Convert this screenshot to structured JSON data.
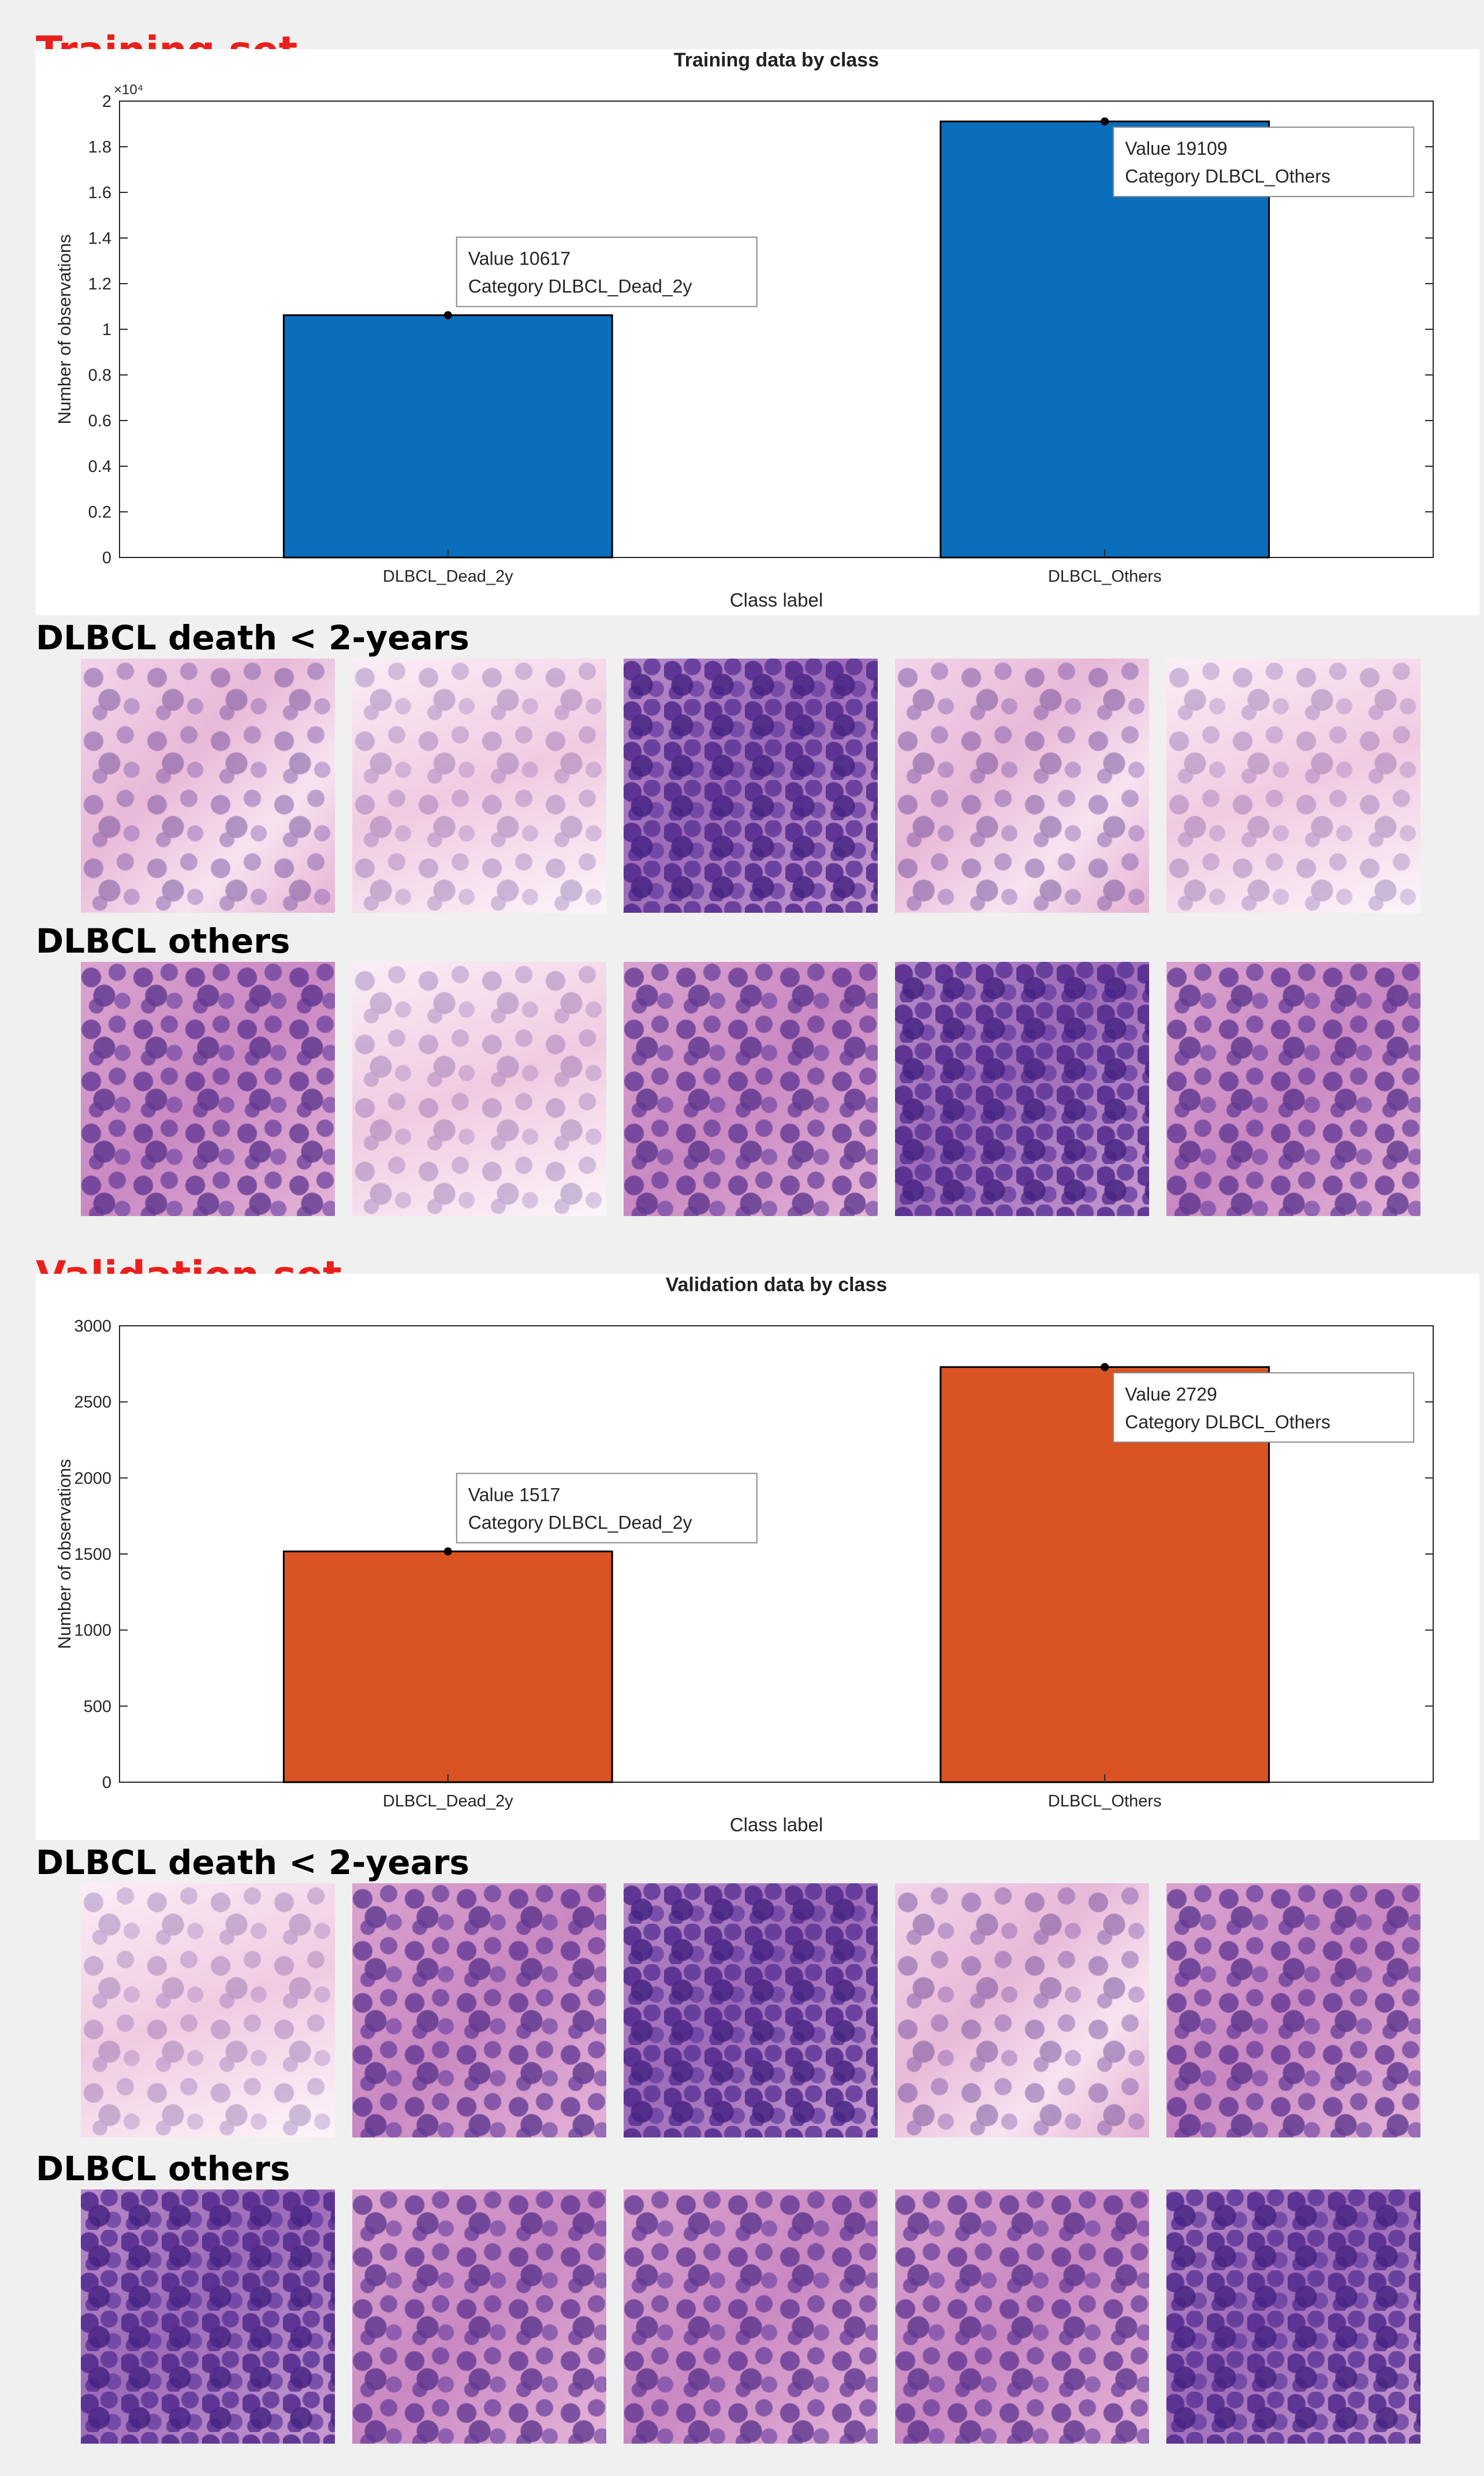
{
  "training": {
    "section_title": "Training set",
    "group1_title": "DLBCL death < 2-years",
    "group2_title": "DLBCL others",
    "group1_tiles": [
      "light",
      "pale",
      "dense",
      "light",
      "pale"
    ],
    "group2_tiles": [
      "mid",
      "pale",
      "mid",
      "dense",
      "mid"
    ]
  },
  "validation": {
    "section_title": "Validation set",
    "group1_title": "DLBCL death < 2-years",
    "group2_title": "DLBCL others",
    "group1_tiles": [
      "pale",
      "mid",
      "dense",
      "light",
      "mid"
    ],
    "group2_tiles": [
      "dense",
      "mid",
      "mid",
      "mid",
      "dense"
    ]
  },
  "chart_data": [
    {
      "type": "bar",
      "title": "Training data by class",
      "xlabel": "Class label",
      "ylabel": "Number of observations",
      "categories": [
        "DLBCL_Dead_2y",
        "DLBCL_Others"
      ],
      "values": [
        10617,
        19109
      ],
      "ylim": [
        0,
        20000
      ],
      "yticks": [
        0,
        2000,
        4000,
        6000,
        8000,
        10000,
        12000,
        14000,
        16000,
        18000,
        20000
      ],
      "ytick_labels": [
        "0",
        "0.2",
        "0.4",
        "0.6",
        "0.8",
        "1",
        "1.2",
        "1.4",
        "1.6",
        "1.8",
        "2"
      ],
      "y_exponent_label": "×10⁴",
      "bar_color": "#0b6ebd",
      "grid": false,
      "annotations": [
        {
          "value_line": "Value 10617",
          "category_line": "Category DLBCL_Dead_2y"
        },
        {
          "value_line": "Value 19109",
          "category_line": "Category DLBCL_Others"
        }
      ]
    },
    {
      "type": "bar",
      "title": "Validation data by class",
      "xlabel": "Class label",
      "ylabel": "Number of observations",
      "categories": [
        "DLBCL_Dead_2y",
        "DLBCL_Others"
      ],
      "values": [
        1517,
        2729
      ],
      "ylim": [
        0,
        3000
      ],
      "yticks": [
        0,
        500,
        1000,
        1500,
        2000,
        2500,
        3000
      ],
      "ytick_labels": [
        "0",
        "500",
        "1000",
        "1500",
        "2000",
        "2500",
        "3000"
      ],
      "y_exponent_label": "",
      "bar_color": "#d95323",
      "grid": false,
      "annotations": [
        {
          "value_line": "Value 1517",
          "category_line": "Category DLBCL_Dead_2y"
        },
        {
          "value_line": "Value 2729",
          "category_line": "Category DLBCL_Others"
        }
      ]
    }
  ]
}
